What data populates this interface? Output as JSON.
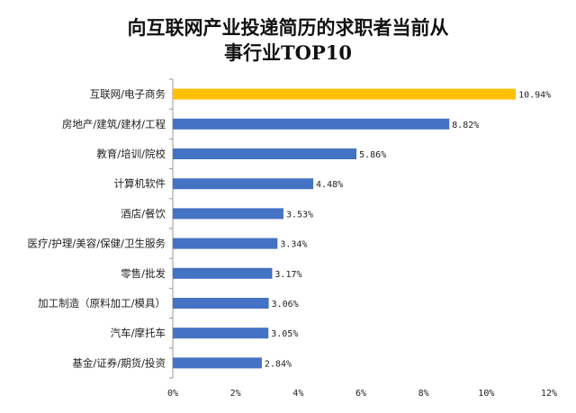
{
  "chart_data": {
    "type": "bar",
    "orientation": "horizontal",
    "title_lines": [
      "向互联网产业投递简历的求职者当前从",
      "事行业TOP10"
    ],
    "categories": [
      "互联网/电子商务",
      "房地产/建筑/建材/工程",
      "教育/培训/院校",
      "计算机软件",
      "酒店/餐饮",
      "医疗/护理/美容/保健/卫生服务",
      "零售/批发",
      "加工制造（原料加工/模具）",
      "汽车/摩托车",
      "基金/证券/期货/投资"
    ],
    "values": [
      10.94,
      8.82,
      5.86,
      4.48,
      3.53,
      3.34,
      3.17,
      3.06,
      3.05,
      2.84
    ],
    "value_labels": [
      "10.94%",
      "8.82%",
      "5.86%",
      "4.48%",
      "3.53%",
      "3.34%",
      "3.17%",
      "3.06%",
      "3.05%",
      "2.84%"
    ],
    "xlim": [
      0,
      12
    ],
    "x_ticks": [
      0,
      2,
      4,
      6,
      8,
      10,
      12
    ],
    "x_tick_labels": [
      "0%",
      "2%",
      "4%",
      "6%",
      "8%",
      "10%",
      "12%"
    ],
    "highlight_index": 0,
    "colors": {
      "highlight": "#FFC000",
      "bar": "#4472C4",
      "axis": "#999999"
    },
    "grid": false,
    "legend": "none"
  }
}
